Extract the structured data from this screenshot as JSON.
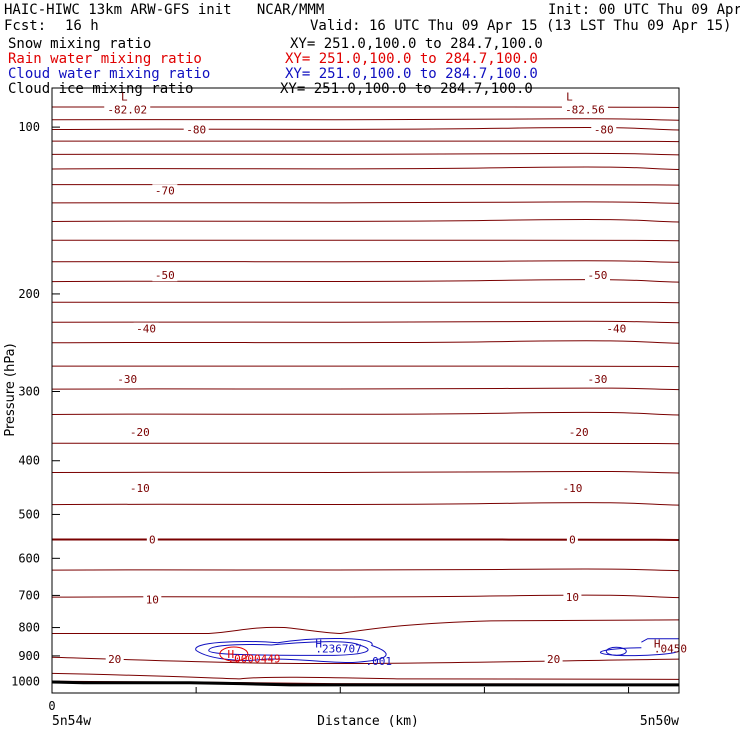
{
  "header": {
    "title": "HAIC-HIWC 13km ARW-GFS init   NCAR/MMM",
    "init": "Init: 00 UTC Thu 09 Apr 15",
    "fcst_label": "Fcst:",
    "fcst_value": "16 h",
    "valid": "Valid: 16 UTC Thu 09 Apr 15 (13 LST Thu 09 Apr 15)",
    "fields": [
      {
        "name": "Snow mixing ratio",
        "xy": "XY= 251.0,100.0 to 284.7,100.0",
        "color": "#000000"
      },
      {
        "name": "Rain water mixing ratio",
        "xy": "XY= 251.0,100.0 to 284.7,100.0",
        "color": "#e00000"
      },
      {
        "name": "Cloud water mixing ratio",
        "xy": "XY= 251.0,100.0 to 284.7,100.0",
        "color": "#1010c0"
      },
      {
        "name": "Cloud ice mixing ratio",
        "xy": "XY= 251.0,100.0 to 284.7,100.0",
        "color": "#000000"
      }
    ]
  },
  "chart_data": {
    "type": "line",
    "ylabel": "Pressure (hPa)",
    "xlabel": "Distance (km)",
    "y_scale": "log",
    "ylim": [
      1050,
      85
    ],
    "y_ticks": [
      100,
      200,
      300,
      400,
      500,
      600,
      700,
      800,
      900,
      1000
    ],
    "x_tick_label": "0",
    "left_label": "5n54w",
    "right_label": "5n50w",
    "colors": {
      "temperature": "#7a0000",
      "cloud_water": "#1010c0",
      "rain_water": "#e00000",
      "terrain": "#000000"
    },
    "temperature_labels": [
      {
        "label": "-82.02",
        "x": 0.12,
        "p": 93
      },
      {
        "label": "-82.56",
        "x": 0.85,
        "p": 93
      },
      {
        "label": "-80",
        "x": 0.23,
        "p": 101
      },
      {
        "label": "-80",
        "x": 0.88,
        "p": 101
      },
      {
        "label": "-70",
        "x": 0.18,
        "p": 130
      },
      {
        "label": "-50",
        "x": 0.18,
        "p": 185
      },
      {
        "label": "-50",
        "x": 0.87,
        "p": 185
      },
      {
        "label": "-40",
        "x": 0.15,
        "p": 231
      },
      {
        "label": "-40",
        "x": 0.9,
        "p": 231
      },
      {
        "label": "-30",
        "x": 0.12,
        "p": 285
      },
      {
        "label": "-30",
        "x": 0.87,
        "p": 285
      },
      {
        "label": "-20",
        "x": 0.14,
        "p": 355
      },
      {
        "label": "-20",
        "x": 0.84,
        "p": 355
      },
      {
        "label": "-10",
        "x": 0.14,
        "p": 448
      },
      {
        "label": "-10",
        "x": 0.83,
        "p": 448
      },
      {
        "label": "0",
        "x": 0.16,
        "p": 555
      },
      {
        "label": "0",
        "x": 0.83,
        "p": 555
      },
      {
        "label": "10",
        "x": 0.16,
        "p": 712
      },
      {
        "label": "10",
        "x": 0.83,
        "p": 705
      },
      {
        "label": "20",
        "x": 0.1,
        "p": 912
      },
      {
        "label": "20",
        "x": 0.8,
        "p": 912
      }
    ],
    "extrema": [
      {
        "text": "L",
        "x": 0.11,
        "p": 88,
        "color": "#7a0000"
      },
      {
        "text": "L",
        "x": 0.82,
        "p": 88,
        "color": "#7a0000"
      },
      {
        "text": "H",
        "x": 0.42,
        "p": 855,
        "color": "#1010c0"
      },
      {
        "text": ".236707",
        "x": 0.42,
        "p": 873,
        "color": "#1010c0"
      },
      {
        "text": ".001",
        "x": 0.5,
        "p": 920,
        "color": "#1010c0"
      },
      {
        "text": "H",
        "x": 0.28,
        "p": 892,
        "color": "#e00000"
      },
      {
        "text": ".0000449",
        "x": 0.28,
        "p": 910,
        "color": "#e00000"
      },
      {
        "text": "H",
        "x": 0.96,
        "p": 855,
        "color": "#7a0000"
      },
      {
        "text": ".0450",
        "x": 0.96,
        "p": 872,
        "color": "#7a0000"
      }
    ],
    "isobar_levels": [
      92,
      97,
      101,
      106,
      112,
      119,
      127,
      137,
      148,
      160,
      175,
      190,
      207,
      225,
      245,
      270,
      297,
      330,
      372,
      420,
      480,
      555,
      630,
      705
    ]
  }
}
